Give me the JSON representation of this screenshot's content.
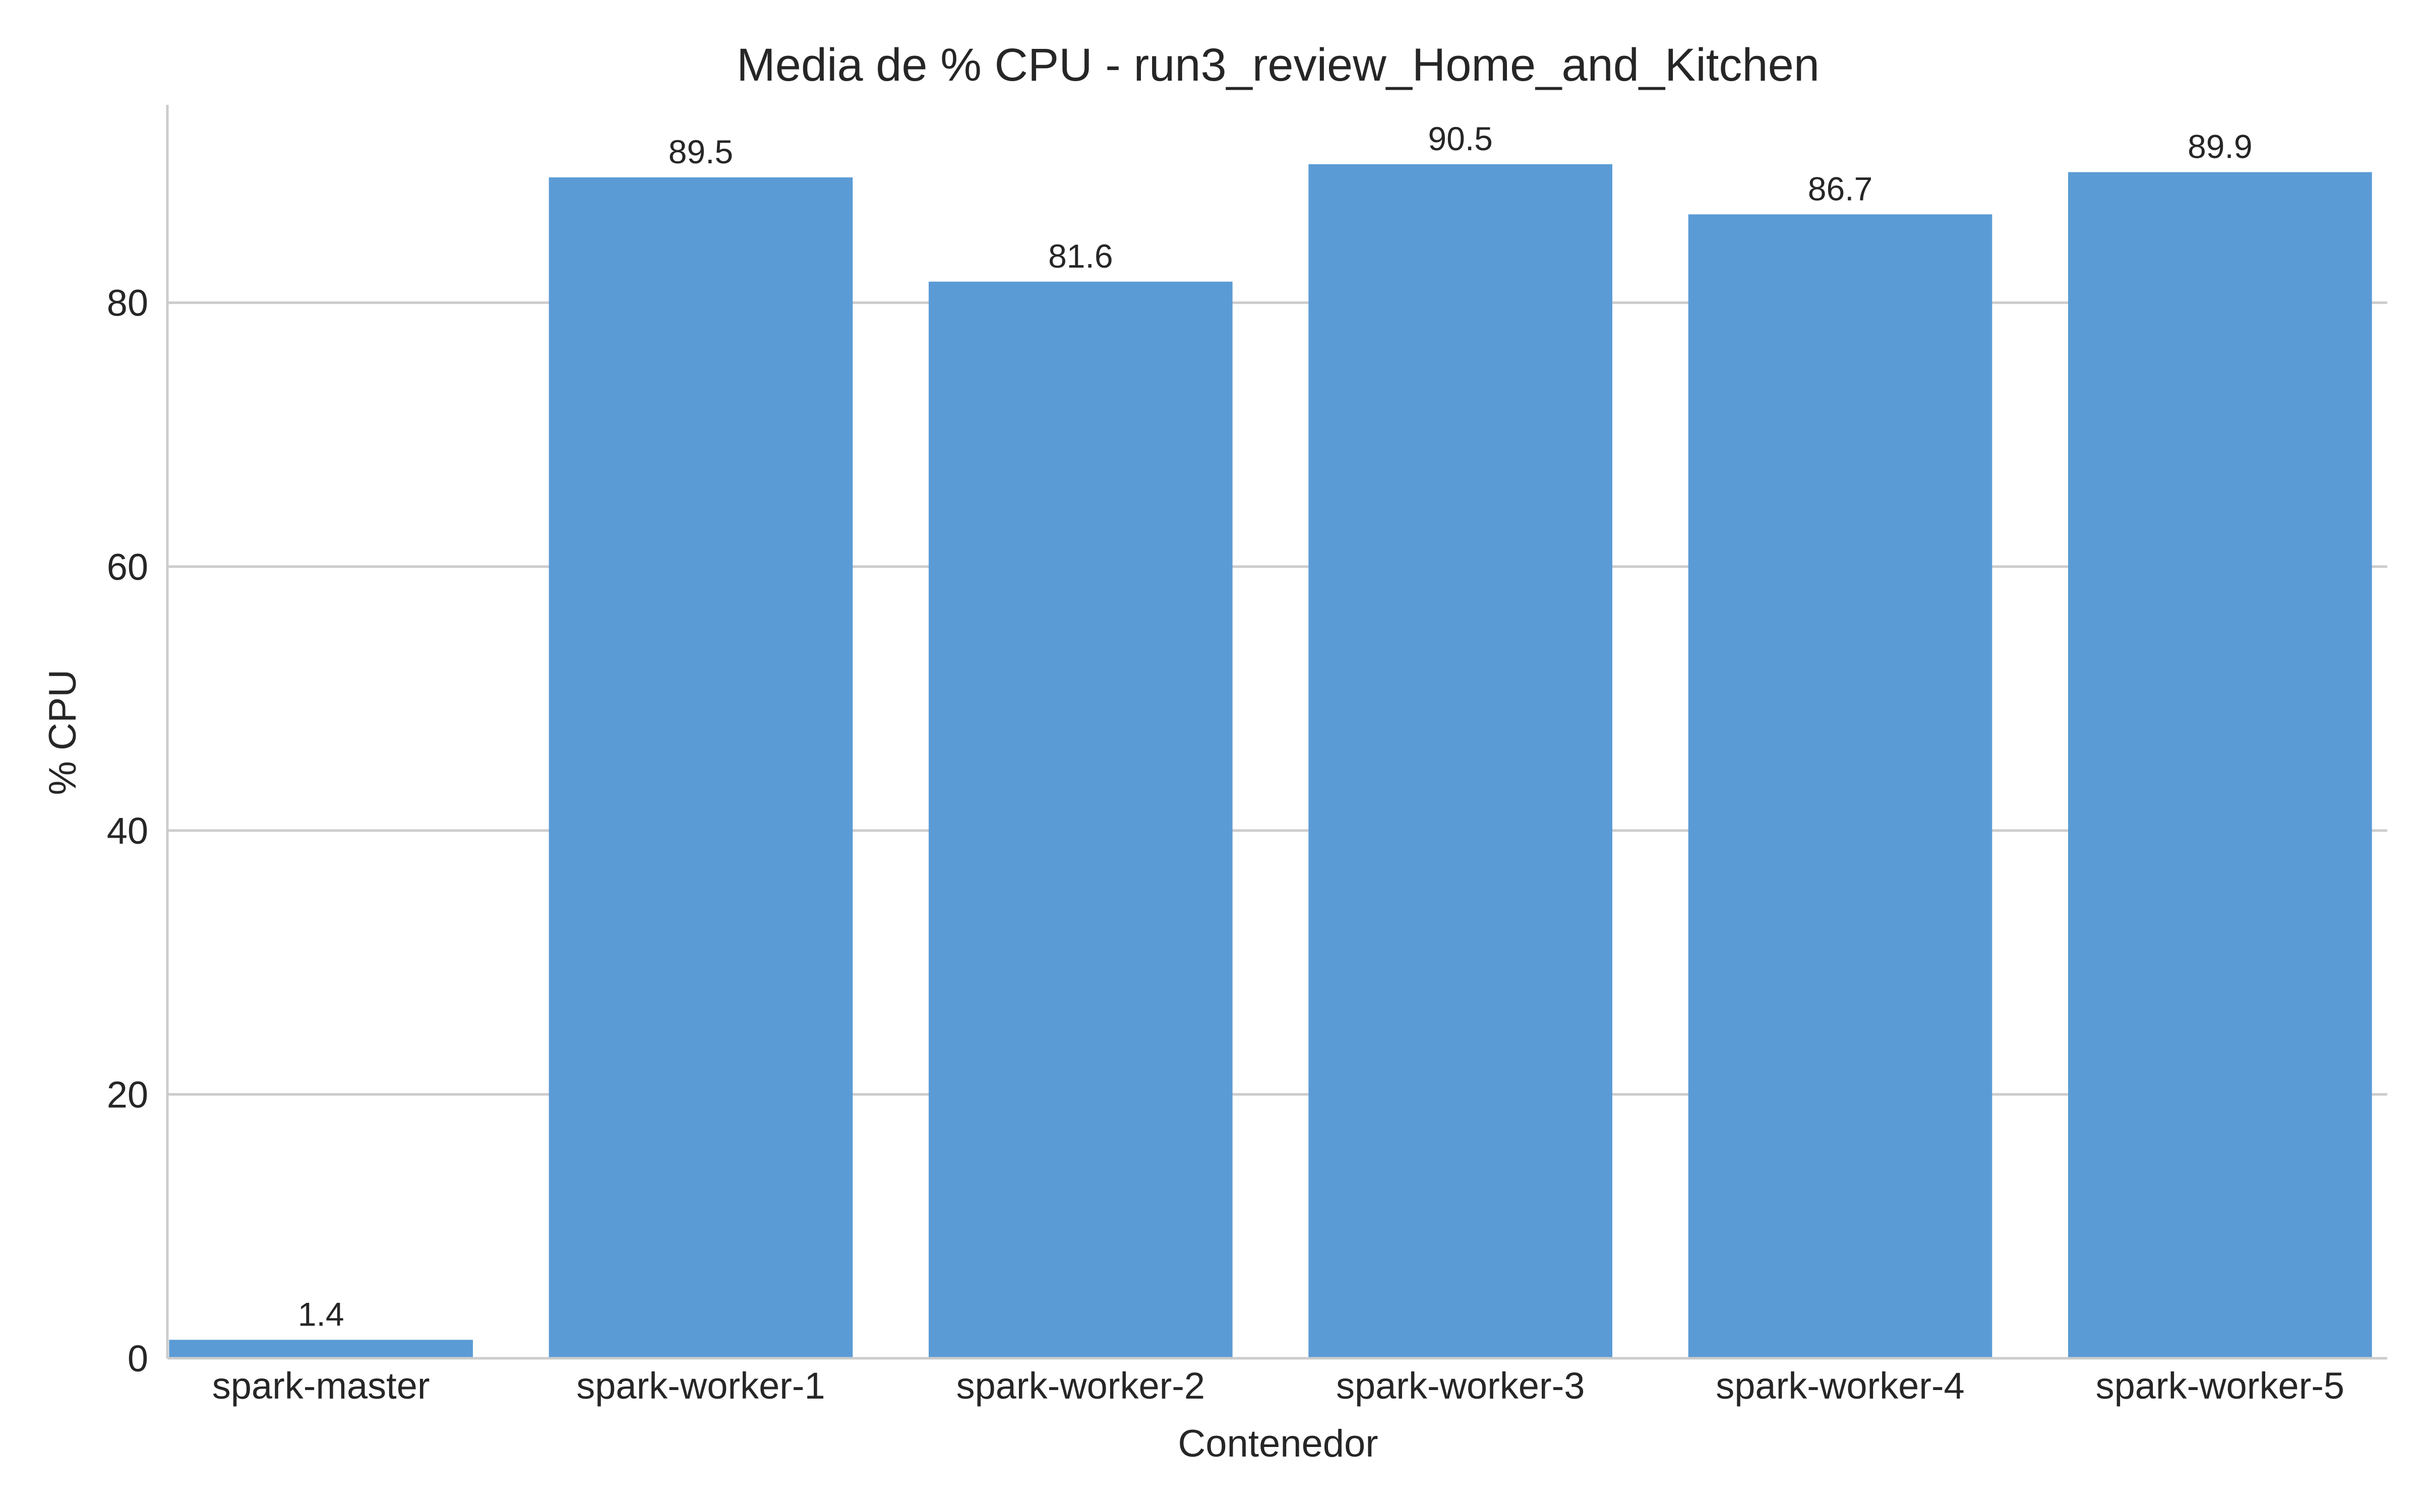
{
  "chart_data": {
    "type": "bar",
    "title": "Media de % CPU - run3_review_Home_and_Kitchen",
    "xlabel": "Contenedor",
    "ylabel": "% CPU",
    "categories": [
      "spark-master",
      "spark-worker-1",
      "spark-worker-2",
      "spark-worker-3",
      "spark-worker-4",
      "spark-worker-5"
    ],
    "values": [
      1.4,
      89.5,
      81.6,
      90.5,
      86.7,
      89.9
    ],
    "data_labels": [
      "1.4",
      "89.5",
      "81.6",
      "90.5",
      "86.7",
      "89.9"
    ],
    "ylim": [
      0,
      95
    ],
    "yticks": [
      0,
      20,
      40,
      60,
      80
    ],
    "ytick_labels": [
      "0",
      "20",
      "40",
      "60",
      "80"
    ],
    "grid": "horizontal",
    "colors": {
      "bar": "#5b9bd5",
      "grid": "#cccccc",
      "axis": "#cccccc",
      "text": "#262626"
    }
  }
}
